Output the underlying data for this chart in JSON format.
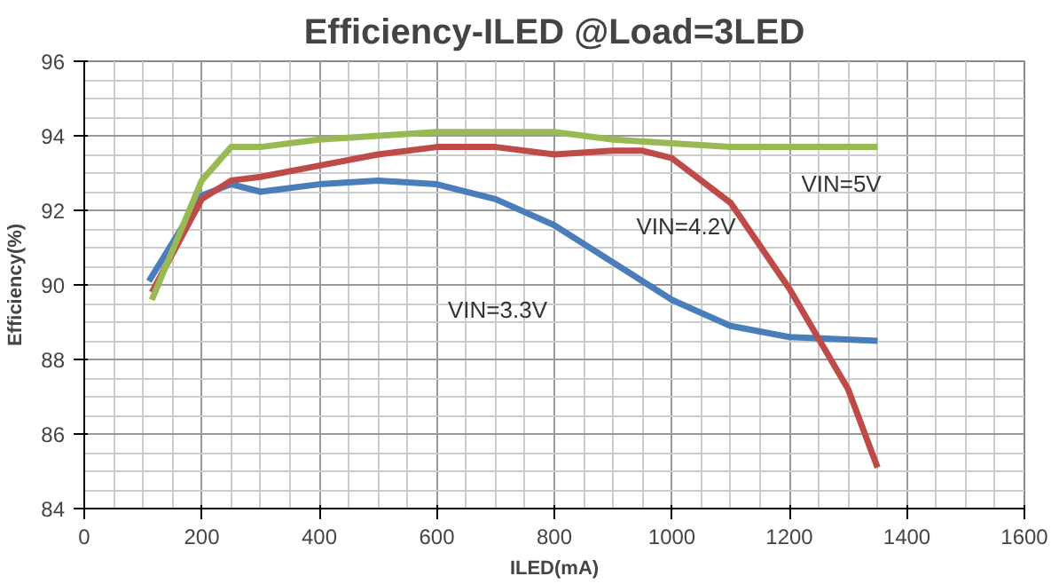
{
  "chart_data": {
    "type": "line",
    "title": "Efficiency-ILED @Load=3LED",
    "xlabel": "ILED(mA)",
    "ylabel": "Efficiency(%)",
    "xlim": [
      0,
      1600
    ],
    "xticks": [
      0,
      200,
      400,
      600,
      800,
      1000,
      1200,
      1400,
      1600
    ],
    "ylim": [
      84,
      96
    ],
    "yticks": [
      84,
      86,
      88,
      90,
      92,
      94,
      96
    ],
    "grid": true,
    "marker": "none",
    "line_style": "solid",
    "series": [
      {
        "name": "VIN=3.3V",
        "color": "#4a7ebb",
        "x": [
          110,
          200,
          250,
          300,
          400,
          500,
          600,
          700,
          800,
          900,
          1000,
          1100,
          1200,
          1350
        ],
        "values": [
          90.1,
          92.4,
          92.7,
          92.5,
          92.7,
          92.8,
          92.7,
          92.3,
          91.6,
          90.6,
          89.6,
          88.9,
          88.6,
          88.5
        ]
      },
      {
        "name": "VIN=4.2V",
        "color": "#be4b48",
        "x": [
          115,
          200,
          250,
          300,
          400,
          500,
          600,
          700,
          800,
          900,
          950,
          1000,
          1100,
          1200,
          1300,
          1350
        ],
        "values": [
          89.8,
          92.3,
          92.8,
          92.9,
          93.2,
          93.5,
          93.7,
          93.7,
          93.5,
          93.6,
          93.6,
          93.4,
          92.2,
          89.9,
          87.2,
          85.1
        ]
      },
      {
        "name": "VIN=5V",
        "color": "#98b954",
        "x": [
          115,
          200,
          250,
          300,
          400,
          500,
          600,
          800,
          900,
          1000,
          1100,
          1200,
          1350
        ],
        "values": [
          89.6,
          92.8,
          93.7,
          93.7,
          93.9,
          94.0,
          94.1,
          94.1,
          93.9,
          93.8,
          93.7,
          93.7,
          93.7
        ]
      }
    ]
  }
}
